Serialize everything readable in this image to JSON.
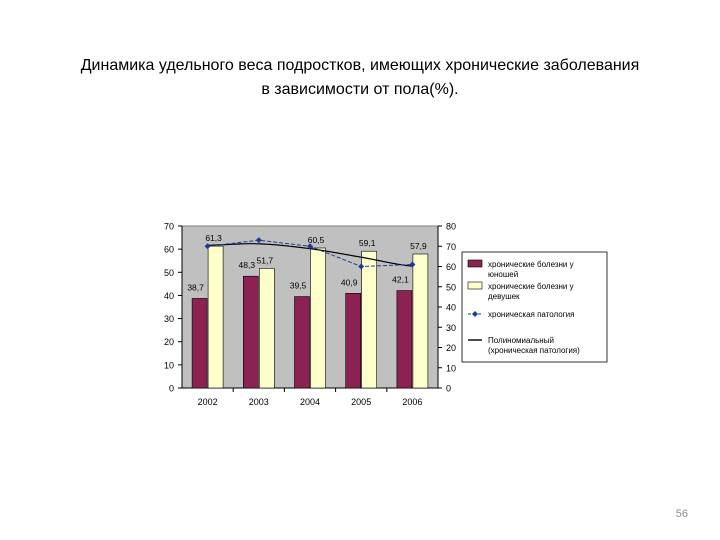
{
  "slide": {
    "title_line1": "Динамика удельного веса подростков, имеющих хронические заболевания",
    "title_line2": "в зависимости от пола(%).",
    "page_number": "56"
  },
  "chart_data": {
    "type": "bar",
    "categories": [
      "2002",
      "2003",
      "2004",
      "2005",
      "2006"
    ],
    "series": [
      {
        "name": "хронические болезни у юношей",
        "kind": "bar",
        "axis": "left",
        "color": "#8b2252",
        "values": [
          38.7,
          48.3,
          39.5,
          40.9,
          42.1
        ],
        "labels": [
          "38,7",
          "48,3",
          "39,5",
          "40,9",
          "42,1"
        ]
      },
      {
        "name": "хронические болезни у девушек",
        "kind": "bar",
        "axis": "left",
        "color": "#ffffcc",
        "values": [
          61.3,
          51.7,
          60.5,
          59.1,
          57.9
        ],
        "labels": [
          "61,3",
          "51,7",
          "60,5",
          "59,1",
          "57,9"
        ]
      },
      {
        "name": "хроническая патология",
        "kind": "line",
        "axis": "right",
        "color": "#1f3a93",
        "values": [
          70,
          73,
          70,
          60,
          61
        ]
      },
      {
        "name": "Полиномиальный (хроническая патология)",
        "kind": "trend",
        "axis": "right",
        "color": "#000000",
        "values": [
          70.5,
          71.2,
          68.8,
          64.6,
          60.2
        ]
      }
    ],
    "y_left": {
      "min": 0,
      "max": 70,
      "ticks": [
        "0",
        "10",
        "20",
        "30",
        "40",
        "50",
        "60",
        "70"
      ]
    },
    "y_right": {
      "min": 0,
      "max": 80,
      "ticks": [
        "0",
        "10",
        "20",
        "30",
        "40",
        "50",
        "60",
        "70",
        "80"
      ]
    },
    "plot_background": "#c0c0c0",
    "grid": false,
    "legend_position": "right"
  }
}
